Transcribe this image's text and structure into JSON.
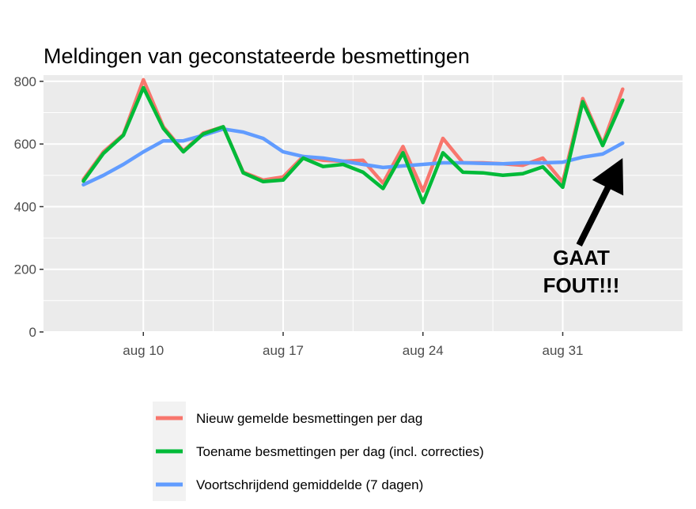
{
  "chart_data": {
    "type": "line",
    "title": "Meldingen van geconstateerde besmettingen",
    "xlabel": "",
    "ylabel": "",
    "x_start": "2020-08-07",
    "x_end": "2020-09-04",
    "xlim": [
      "2020-08-05",
      "2020-09-06"
    ],
    "ylim": [
      0,
      820
    ],
    "x_ticks": [
      {
        "date": "2020-08-10",
        "label": "aug 10"
      },
      {
        "date": "2020-08-17",
        "label": "aug 17"
      },
      {
        "date": "2020-08-24",
        "label": "aug 24"
      },
      {
        "date": "2020-08-31",
        "label": "aug 31"
      }
    ],
    "y_ticks": [
      0,
      200,
      400,
      600,
      800
    ],
    "y_tick_labels": [
      "0",
      "200",
      "400",
      "600",
      "800"
    ],
    "grid": true,
    "legend_position": "bottom",
    "series": [
      {
        "name": "Nieuw gemelde besmettingen per dag",
        "color": "#f8766d",
        "values": [
          487,
          575,
          630,
          805,
          655,
          578,
          635,
          655,
          510,
          485,
          495,
          560,
          548,
          545,
          548,
          475,
          592,
          450,
          618,
          540,
          540,
          537,
          532,
          555,
          478,
          745,
          600,
          775
        ]
      },
      {
        "name": "Toename besmettingen per dag (incl. correcties)",
        "color": "#00ba38",
        "values": [
          482,
          570,
          628,
          780,
          650,
          575,
          632,
          655,
          508,
          480,
          485,
          555,
          528,
          535,
          510,
          458,
          572,
          413,
          572,
          510,
          508,
          500,
          505,
          527,
          462,
          735,
          595,
          740
        ]
      },
      {
        "name": "Voortschrijdend gemiddelde (7 dagen)",
        "color": "#619cff",
        "values": [
          470,
          500,
          535,
          575,
          610,
          610,
          628,
          648,
          638,
          618,
          575,
          560,
          555,
          545,
          535,
          525,
          530,
          535,
          540,
          540,
          538,
          537,
          540,
          540,
          542,
          558,
          568,
          603
        ]
      }
    ],
    "annotation": {
      "lines": [
        "GAAT",
        "FOUT!!!"
      ],
      "arrow_target": {
        "date": "2020-09-03",
        "value": 555
      }
    }
  }
}
